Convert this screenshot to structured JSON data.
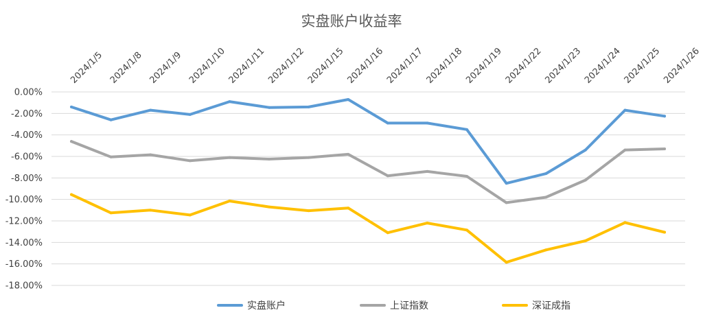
{
  "chart_data": {
    "type": "line",
    "title": "实盘账户收益率",
    "categories": [
      "2024/1/5",
      "2024/1/8",
      "2024/1/9",
      "2024/1/10",
      "2024/1/11",
      "2024/1/12",
      "2024/1/15",
      "2024/1/16",
      "2024/1/17",
      "2024/1/18",
      "2024/1/19",
      "2024/1/22",
      "2024/1/23",
      "2024/1/24",
      "2024/1/25",
      "2024/1/26"
    ],
    "y_ticks": [
      "0.00%",
      "-2.00%",
      "-4.00%",
      "-6.00%",
      "-8.00%",
      "-10.00%",
      "-12.00%",
      "-14.00%",
      "-16.00%",
      "-18.00%"
    ],
    "ylim": [
      -18,
      0
    ],
    "grid": true,
    "legend_position": "bottom",
    "series": [
      {
        "name": "实盘账户",
        "color": "#5b9bd5",
        "values": [
          -1.4,
          -2.6,
          -1.7,
          -2.1,
          -0.9,
          -1.45,
          -1.4,
          -0.7,
          -2.9,
          -2.9,
          -3.5,
          -8.5,
          -7.6,
          -5.4,
          -1.7,
          -2.25
        ]
      },
      {
        "name": "上证指数",
        "color": "#a5a5a5",
        "values": [
          -4.6,
          -6.05,
          -5.85,
          -6.4,
          -6.1,
          -6.25,
          -6.1,
          -5.8,
          -7.8,
          -7.4,
          -7.85,
          -10.3,
          -9.8,
          -8.2,
          -5.4,
          -5.3
        ]
      },
      {
        "name": "深证成指",
        "color": "#ffc000",
        "values": [
          -9.55,
          -11.25,
          -11.0,
          -11.45,
          -10.15,
          -10.7,
          -11.05,
          -10.8,
          -13.1,
          -12.2,
          -12.85,
          -15.85,
          -14.7,
          -13.85,
          -12.15,
          -13.05
        ]
      }
    ]
  }
}
